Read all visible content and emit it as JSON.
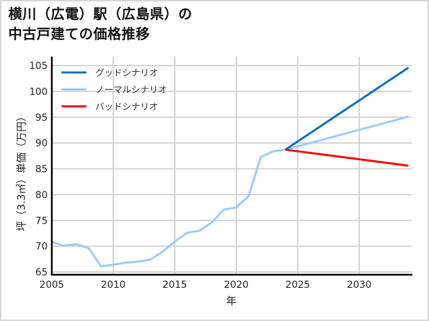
{
  "title_line1": "横川（広電）駅（広島県）の",
  "title_line2": "中古戸建ての価格推移",
  "chart_data": {
    "type": "line",
    "title": "横川（広電）駅（広島県）の中古戸建ての価格推移",
    "xlabel": "年",
    "ylabel": "坪（3.3㎡）単価（万円）",
    "xlim": [
      2005,
      2034
    ],
    "ylim": [
      64.5,
      106
    ],
    "x_ticks": [
      2005,
      2010,
      2015,
      2020,
      2025,
      2030
    ],
    "y_ticks": [
      65,
      70,
      75,
      80,
      85,
      90,
      95,
      100,
      105
    ],
    "grid": true,
    "legend_position": "upper left",
    "series": [
      {
        "name": "ノーマルシナリオ",
        "color": "#99ccff",
        "x": [
          2005,
          2006,
          2007,
          2008,
          2009,
          2010,
          2011,
          2012,
          2013,
          2014,
          2015,
          2016,
          2017,
          2018,
          2019,
          2020,
          2021,
          2022,
          2023,
          2024,
          2034
        ],
        "values": [
          70.8,
          70.1,
          70.4,
          69.6,
          66.1,
          66.4,
          66.8,
          67.0,
          67.4,
          68.9,
          70.9,
          72.6,
          73.0,
          74.6,
          77.1,
          77.5,
          79.7,
          87.3,
          88.4,
          88.7,
          95.1
        ]
      },
      {
        "name": "グッドシナリオ",
        "color": "#0070c0",
        "x": [
          2024,
          2034
        ],
        "values": [
          88.7,
          104.6
        ]
      },
      {
        "name": "バッドシナリオ",
        "color": "#ff0000",
        "x": [
          2024,
          2034
        ],
        "values": [
          88.7,
          85.6
        ]
      }
    ],
    "legend": [
      "グッドシナリオ",
      "ノーマルシナリオ",
      "バッドシナリオ"
    ]
  }
}
